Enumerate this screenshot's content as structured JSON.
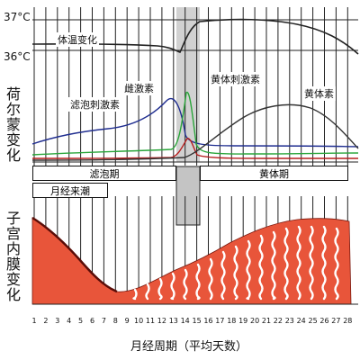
{
  "temperature": {
    "title": "体温变化",
    "high_label": "37°C",
    "low_label": "36°C"
  },
  "hormones": {
    "section_label": "荷尔蒙变化",
    "fsh": "滤泡刺激素",
    "estrogen": "雌激素",
    "lh": "黄体刺激素",
    "progesterone": "黄体素",
    "colors": {
      "fsh": "#1f2d8f",
      "estrogen": "#2f6fb0",
      "lh": "#2aa53a",
      "progesterone": "#333333",
      "red": "#b51e1e"
    }
  },
  "phases": {
    "follicular": "滤泡期",
    "luteal": "黄体期",
    "menses": "月经来潮"
  },
  "endometrium": {
    "section_label": "子宫内膜变化",
    "color": "#e8553a"
  },
  "axis": {
    "days": [
      "1",
      "2",
      "3",
      "4",
      "5",
      "6",
      "7",
      "8",
      "9",
      "10",
      "11",
      "12",
      "13",
      "14",
      "15",
      "16",
      "17",
      "18",
      "19",
      "20",
      "21",
      "22",
      "23",
      "24",
      "25",
      "26",
      "27",
      "28"
    ],
    "xlabel": "月经周期（平均天数）"
  }
}
